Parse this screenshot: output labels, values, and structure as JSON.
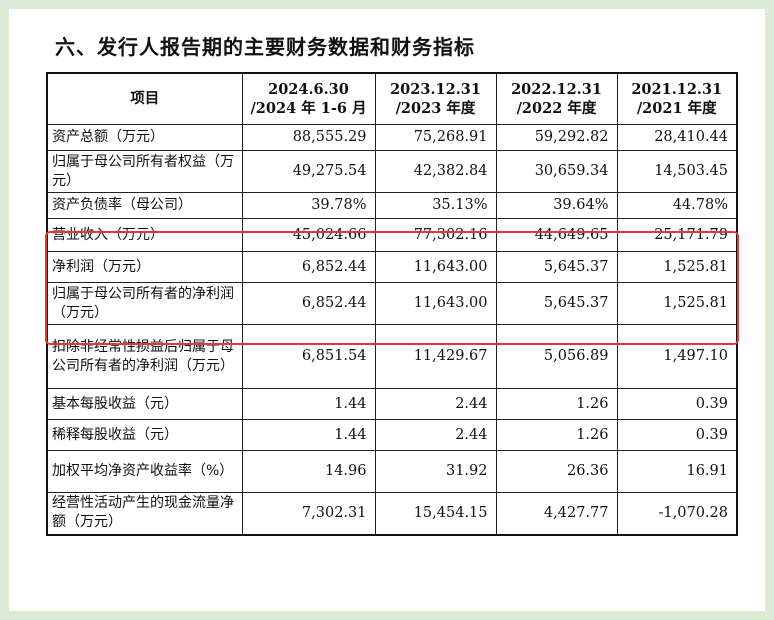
{
  "title": "六、发行人报告期的主要财务数据和财务指标",
  "table": {
    "headers": [
      "项目",
      "2024.6.30\n/2024 年 1-6 月",
      "2023.12.31\n/2023 年度",
      "2022.12.31\n/2022 年度",
      "2021.12.31\n/2021 年度"
    ],
    "rows": [
      {
        "label": "资产总额（万元）",
        "values": [
          "88,555.29",
          "75,268.91",
          "59,292.82",
          "28,410.44"
        ]
      },
      {
        "label": "归属于母公司所有者权益（万元）",
        "values": [
          "49,275.54",
          "42,382.84",
          "30,659.34",
          "14,503.45"
        ]
      },
      {
        "label": "资产负债率（母公司）",
        "values": [
          "39.78%",
          "35.13%",
          "39.64%",
          "44.78%"
        ]
      },
      {
        "label": "营业收入（万元）",
        "values": [
          "45,024.66",
          "77,302.16",
          "44,649.65",
          "25,171.79"
        ]
      },
      {
        "label": "净利润（万元）",
        "values": [
          "6,852.44",
          "11,643.00",
          "5,645.37",
          "1,525.81"
        ]
      },
      {
        "label": "归属于母公司所有者的净利润（万元）",
        "values": [
          "6,852.44",
          "11,643.00",
          "5,645.37",
          "1,525.81"
        ]
      },
      {
        "label": "扣除非经常性损益后归属于母公司所有者的净利润（万元）",
        "values": [
          "6,851.54",
          "11,429.67",
          "5,056.89",
          "1,497.10"
        ]
      },
      {
        "label": "基本每股收益（元）",
        "values": [
          "1.44",
          "2.44",
          "1.26",
          "0.39"
        ]
      },
      {
        "label": "稀释每股收益（元）",
        "values": [
          "1.44",
          "2.44",
          "1.26",
          "0.39"
        ]
      },
      {
        "label": "加权平均净资产收益率（%）",
        "values": [
          "14.96",
          "31.92",
          "26.36",
          "16.91"
        ]
      },
      {
        "label": "经营性活动产生的现金流量净额（万元）",
        "values": [
          "7,302.31",
          "15,454.15",
          "4,427.77",
          "-1,070.28"
        ]
      }
    ]
  },
  "highlight_color": "#e23a2e"
}
